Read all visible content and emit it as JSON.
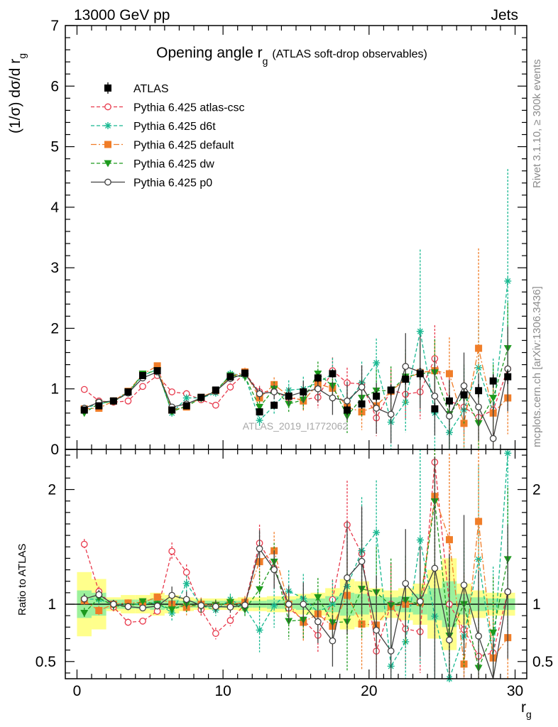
{
  "header": {
    "left": "13000 GeV pp",
    "right": "Jets"
  },
  "side_labels": {
    "rivet": "Rivet 3.1.10, ≥ 300k events",
    "mcplots": "mcplots.cern.ch [arXiv:1306.3436]"
  },
  "watermark": "ATLAS_2019_I1772062",
  "chart_data": {
    "type": "scatter",
    "title": {
      "main": "Opening angle r",
      "sub": "g",
      "extra": "(ATLAS soft-drop observables)"
    },
    "xlabel": {
      "main": "r",
      "sub": "g"
    },
    "ylabel_main": {
      "prefix": "(1/σ) dσ/d r",
      "sub": "g"
    },
    "ylabel_ratio": "Ratio to ATLAS",
    "xlim": [
      -0.8,
      30.8
    ],
    "ylim_main": [
      0,
      7
    ],
    "ylim_ratio": [
      0.35,
      2.35
    ],
    "x_ticks": [
      "0",
      "10",
      "20",
      "30"
    ],
    "y_ticks_main": [
      "0",
      "1",
      "2",
      "3",
      "4",
      "5",
      "6",
      "7"
    ],
    "y_ticks_ratio": [
      "0.5",
      "1",
      "2"
    ],
    "legend_position": "top-left",
    "x": [
      0.5,
      1.5,
      2.5,
      3.5,
      4.5,
      5.5,
      6.5,
      7.5,
      8.5,
      9.5,
      10.5,
      11.5,
      12.5,
      13.5,
      14.5,
      15.5,
      16.5,
      17.5,
      18.5,
      19.5,
      20.5,
      21.5,
      22.5,
      23.5,
      24.5,
      25.5,
      26.5,
      27.5,
      28.5,
      29.5
    ],
    "series": [
      {
        "name": "ATLAS",
        "color": "#000000",
        "marker": "square-filled",
        "line": "none",
        "values": [
          0.65,
          0.72,
          0.8,
          0.95,
          1.22,
          1.3,
          0.65,
          0.72,
          0.86,
          0.98,
          1.2,
          1.26,
          0.62,
          0.73,
          0.88,
          0.95,
          1.18,
          1.25,
          0.65,
          0.75,
          0.88,
          0.98,
          1.16,
          1.25,
          0.67,
          0.8,
          0.9,
          0.97,
          1.13,
          1.2
        ],
        "stat_err": [
          0.04,
          0.04,
          0.04,
          0.05,
          0.05,
          0.05,
          0.05,
          0.05,
          0.05,
          0.05,
          0.06,
          0.06,
          0.06,
          0.06,
          0.07,
          0.07,
          0.07,
          0.07,
          0.08,
          0.08,
          0.08,
          0.09,
          0.09,
          0.1,
          0.1,
          0.1,
          0.1,
          0.11,
          0.11,
          0.12
        ],
        "band_tot": [
          0.28,
          0.22,
          0.06,
          0.08,
          0.08,
          0.1,
          0.08,
          0.06,
          0.05,
          0.05,
          0.05,
          0.06,
          0.06,
          0.07,
          0.07,
          0.09,
          0.1,
          0.14,
          0.22,
          0.2,
          0.14,
          0.12,
          0.14,
          0.18,
          0.3,
          0.4,
          0.18,
          0.12,
          0.1,
          0.1
        ],
        "band_stat": [
          0.12,
          0.1,
          0.04,
          0.04,
          0.04,
          0.05,
          0.04,
          0.03,
          0.03,
          0.03,
          0.03,
          0.03,
          0.03,
          0.04,
          0.04,
          0.05,
          0.05,
          0.07,
          0.1,
          0.09,
          0.07,
          0.06,
          0.07,
          0.09,
          0.14,
          0.2,
          0.09,
          0.06,
          0.05,
          0.05
        ]
      },
      {
        "name": "Pythia 6.425 atlas-csc",
        "color": "#e8394c",
        "marker": "circle-open",
        "line": "dashed",
        "values": [
          0.99,
          0.8,
          0.78,
          0.8,
          1.04,
          1.22,
          0.95,
          0.92,
          0.82,
          0.73,
          1.03,
          1.26,
          0.95,
          0.96,
          0.85,
          0.82,
          0.86,
          1.3,
          1.1,
          1.08,
          0.52,
          0.98,
          0.91,
          0.95,
          1.5,
          0.8,
          0.7,
          0.53,
          0.65,
          1.33
        ],
        "errors": [
          0.03,
          0.03,
          0.03,
          0.03,
          0.03,
          0.04,
          0.05,
          0.05,
          0.05,
          0.05,
          0.06,
          0.07,
          0.1,
          0.12,
          0.14,
          0.16,
          0.18,
          0.22,
          0.25,
          0.3,
          0.3,
          0.35,
          0.4,
          0.45,
          0.55,
          0.5,
          0.45,
          0.4,
          0.4,
          0.45
        ]
      },
      {
        "name": "Pythia 6.425 d6t",
        "color": "#17b890",
        "marker": "star",
        "line": "dashed",
        "values": [
          0.68,
          0.75,
          0.8,
          0.95,
          1.22,
          1.32,
          0.6,
          0.85,
          0.85,
          0.93,
          1.25,
          1.22,
          0.48,
          0.72,
          0.98,
          1.0,
          1.1,
          1.25,
          0.75,
          1.1,
          1.43,
          0.45,
          0.78,
          1.95,
          0.6,
          0.28,
          0.65,
          1.35,
          0.6,
          2.78
        ],
        "errors": [
          0.03,
          0.03,
          0.03,
          0.03,
          0.03,
          0.04,
          0.05,
          0.05,
          0.05,
          0.05,
          0.06,
          0.07,
          0.12,
          0.14,
          0.16,
          0.2,
          0.22,
          0.26,
          0.3,
          0.35,
          0.4,
          0.45,
          0.5,
          1.35,
          0.6,
          0.65,
          0.7,
          0.8,
          0.9,
          1.85
        ]
      },
      {
        "name": "Pythia 6.425 default",
        "color": "#f07d28",
        "marker": "square-filled",
        "line": "dashdot",
        "values": [
          0.67,
          0.68,
          0.8,
          0.96,
          1.24,
          1.38,
          0.65,
          0.7,
          0.86,
          0.97,
          1.2,
          1.28,
          0.85,
          1.07,
          0.88,
          0.8,
          1.08,
          1.01,
          0.7,
          0.62,
          0.72,
          0.96,
          1.16,
          1.27,
          1.3,
          1.25,
          0.43,
          1.67,
          0.6,
          0.85
        ],
        "errors": [
          0.03,
          0.03,
          0.03,
          0.03,
          0.03,
          0.04,
          0.05,
          0.05,
          0.05,
          0.05,
          0.06,
          0.07,
          0.1,
          0.12,
          0.14,
          0.16,
          0.18,
          0.22,
          0.25,
          0.3,
          0.3,
          0.35,
          0.4,
          0.45,
          0.5,
          0.6,
          0.7,
          1.65,
          0.6,
          0.6
        ]
      },
      {
        "name": "Pythia 6.425 dw",
        "color": "#1d9a1d",
        "marker": "triangle-down",
        "line": "dashed",
        "values": [
          0.6,
          0.76,
          0.79,
          0.93,
          1.25,
          1.3,
          0.62,
          0.72,
          0.84,
          0.97,
          1.22,
          1.2,
          0.7,
          1.0,
          0.75,
          0.82,
          1.25,
          1.05,
          0.55,
          0.85,
          0.97,
          0.97,
          1.2,
          1.25,
          1.27,
          0.58,
          0.9,
          0.43,
          0.85,
          1.67
        ],
        "errors": [
          0.03,
          0.03,
          0.03,
          0.03,
          0.03,
          0.04,
          0.05,
          0.05,
          0.05,
          0.05,
          0.06,
          0.07,
          0.1,
          0.12,
          0.14,
          0.16,
          0.2,
          0.24,
          0.28,
          0.32,
          0.35,
          0.4,
          0.45,
          0.5,
          0.55,
          0.55,
          0.5,
          0.5,
          0.55,
          0.75
        ]
      },
      {
        "name": "Pythia 6.425 p0",
        "color": "#404040",
        "marker": "circle-open",
        "line": "solid",
        "values": [
          0.68,
          0.78,
          0.8,
          0.93,
          1.18,
          1.28,
          0.7,
          0.75,
          0.85,
          0.96,
          1.17,
          1.25,
          0.92,
          0.95,
          0.88,
          0.95,
          1.0,
          0.85,
          0.8,
          1.03,
          0.68,
          0.58,
          1.37,
          1.28,
          0.88,
          0.55,
          1.05,
          0.7,
          0.18,
          1.33
        ],
        "errors": [
          0.03,
          0.03,
          0.03,
          0.03,
          0.03,
          0.04,
          0.05,
          0.05,
          0.05,
          0.05,
          0.06,
          0.07,
          0.1,
          0.12,
          0.14,
          0.18,
          0.22,
          0.28,
          0.32,
          0.36,
          0.42,
          0.48,
          0.55,
          0.6,
          0.65,
          0.6,
          0.55,
          0.55,
          0.6,
          0.7
        ]
      }
    ]
  }
}
